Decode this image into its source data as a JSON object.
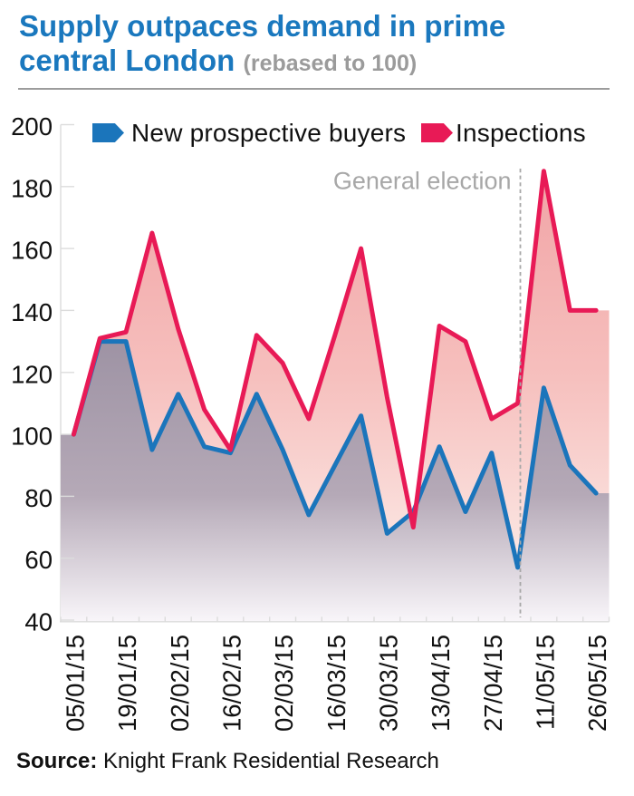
{
  "title": {
    "text": "Supply outpaces demand in prime central London",
    "lines": [
      "Supply outpaces demand in prime",
      "central London"
    ],
    "suffix": "(rebased to 100)"
  },
  "legend": {
    "items": [
      {
        "label": "New prospective buyers",
        "color": "#1b75bb"
      },
      {
        "label": "Inspections",
        "color": "#e81a56"
      }
    ]
  },
  "annotation": {
    "label": "General election"
  },
  "source": {
    "label": "Source:",
    "text": "Knight Frank Residential Research"
  },
  "colors": {
    "title_blue": "#1a78be",
    "subtitle_gray": "#9b9b9b",
    "rule_gray": "#9c9c9c",
    "axis_gray": "#dcdcdc",
    "label_black": "#111111",
    "annotation_gray": "#a7a7a7",
    "buyers_line": "#1b75bb",
    "inspections_line": "#e81a56",
    "buyers_fill_top": "#9e93a4",
    "buyers_fill_mid": "#b5a9b7",
    "buyers_fill_bottom": "#f8f5f9",
    "inspections_fill_top": "#f1a4a6",
    "inspections_fill_mid": "#f6bfbd",
    "inspections_fill_bottom": "#fdf4f0"
  },
  "chart_data": {
    "type": "line",
    "x_points": 21,
    "x_tick_labels": [
      "05/01/15",
      "19/01/15",
      "02/02/15",
      "16/02/15",
      "02/03/15",
      "16/03/15",
      "30/03/15",
      "13/04/15",
      "27/04/15",
      "11/05/15",
      "26/05/15"
    ],
    "x_tick_every": 2,
    "series": [
      {
        "name": "New prospective buyers",
        "values": [
          100,
          130,
          130,
          95,
          113,
          96,
          94,
          113,
          95,
          74,
          90,
          106,
          68,
          75,
          96,
          75,
          94,
          57,
          115,
          90,
          81
        ]
      },
      {
        "name": "Inspections",
        "values": [
          100,
          131,
          133,
          165,
          134,
          108,
          95,
          132,
          123,
          105,
          132,
          160,
          112,
          70,
          135,
          130,
          105,
          110,
          185,
          140,
          140
        ]
      }
    ],
    "ylim": [
      40,
      200
    ],
    "yticks": [
      200,
      180,
      160,
      140,
      120,
      100,
      80,
      60,
      40
    ],
    "annotation_x_index": 17.1,
    "legend_position": "top",
    "gridlines": false,
    "area_fill": true
  }
}
